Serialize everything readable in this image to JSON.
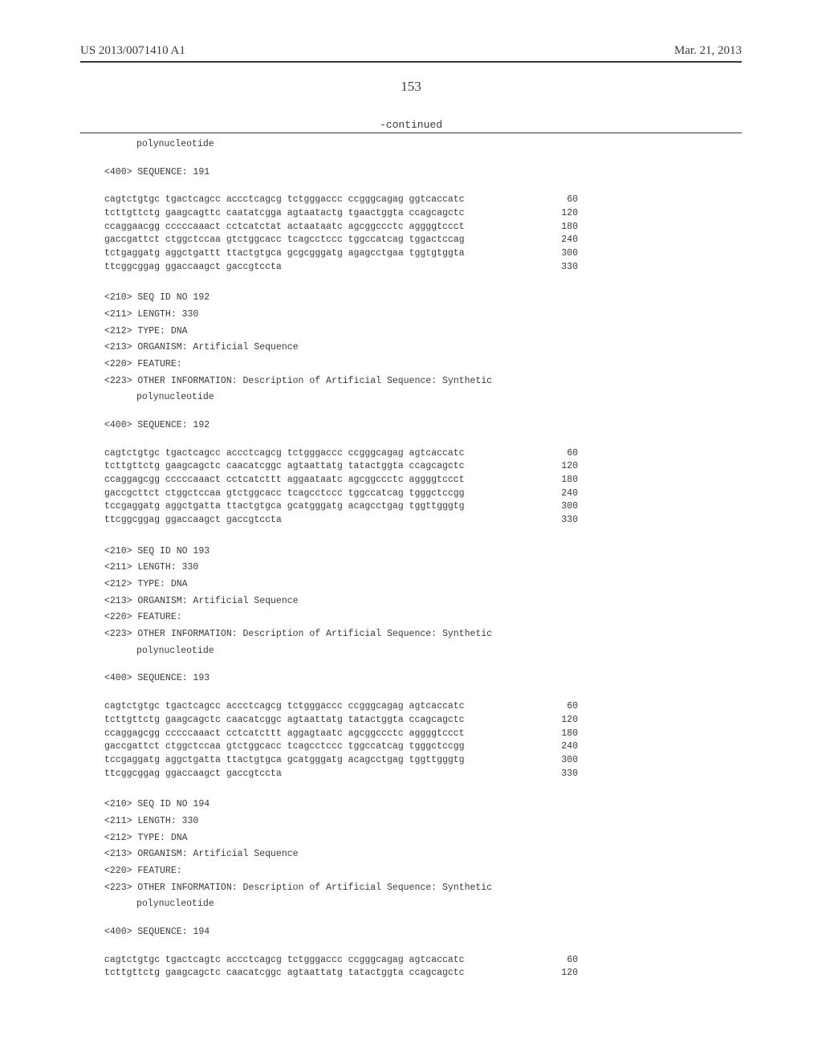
{
  "header": {
    "pub_number": "US 2013/0071410 A1",
    "date": "Mar. 21, 2013",
    "page_number": "153"
  },
  "continued_label": "-continued",
  "sequences": [
    {
      "meta_continuation": [
        "polynucleotide"
      ],
      "seq_label": "<400> SEQUENCE: 191",
      "lines": [
        {
          "text": "cagtctgtgc tgactcagcc accctcagcg tctgggaccc ccgggcagag ggtcaccatc",
          "num": "60"
        },
        {
          "text": "tcttgttctg gaagcagttc caatatcgga agtaatactg tgaactggta ccagcagctc",
          "num": "120"
        },
        {
          "text": "ccaggaacgg cccccaaact cctcatctat actaataatc agcggccctc aggggtccct",
          "num": "180"
        },
        {
          "text": "gaccgattct ctggctccaa gtctggcacc tcagcctccc tggccatcag tggactccag",
          "num": "240"
        },
        {
          "text": "tctgaggatg aggctgattt ttactgtgca gcgcgggatg agagcctgaa tggtgtggta",
          "num": "300"
        },
        {
          "text": "ttcggcggag ggaccaagct gaccgtccta",
          "num": "330"
        }
      ]
    },
    {
      "meta": [
        "<210> SEQ ID NO 192",
        "<211> LENGTH: 330",
        "<212> TYPE: DNA",
        "<213> ORGANISM: Artificial Sequence",
        "<220> FEATURE:",
        "<223> OTHER INFORMATION: Description of Artificial Sequence: Synthetic"
      ],
      "meta_indent": [
        "polynucleotide"
      ],
      "seq_label": "<400> SEQUENCE: 192",
      "lines": [
        {
          "text": "cagtctgtgc tgactcagcc accctcagcg tctgggaccc ccgggcagag agtcaccatc",
          "num": "60"
        },
        {
          "text": "tcttgttctg gaagcagctc caacatcggc agtaattatg tatactggta ccagcagctc",
          "num": "120"
        },
        {
          "text": "ccaggagcgg cccccaaact cctcatcttt aggaataatc agcggccctc aggggtccct",
          "num": "180"
        },
        {
          "text": "gaccgcttct ctggctccaa gtctggcacc tcagcctccc tggccatcag tgggctccgg",
          "num": "240"
        },
        {
          "text": "tccgaggatg aggctgatta ttactgtgca gcatgggatg acagcctgag tggttgggtg",
          "num": "300"
        },
        {
          "text": "ttcggcggag ggaccaagct gaccgtccta",
          "num": "330"
        }
      ]
    },
    {
      "meta": [
        "<210> SEQ ID NO 193",
        "<211> LENGTH: 330",
        "<212> TYPE: DNA",
        "<213> ORGANISM: Artificial Sequence",
        "<220> FEATURE:",
        "<223> OTHER INFORMATION: Description of Artificial Sequence: Synthetic"
      ],
      "meta_indent": [
        "polynucleotide"
      ],
      "seq_label": "<400> SEQUENCE: 193",
      "lines": [
        {
          "text": "cagtctgtgc tgactcagcc accctcagcg tctgggaccc ccgggcagag agtcaccatc",
          "num": "60"
        },
        {
          "text": "tcttgttctg gaagcagctc caacatcggc agtaattatg tatactggta ccagcagctc",
          "num": "120"
        },
        {
          "text": "ccaggagcgg cccccaaact cctcatcttt aggagtaatc agcggccctc aggggtccct",
          "num": "180"
        },
        {
          "text": "gaccgattct ctggctccaa gtctggcacc tcagcctccc tggccatcag tgggctccgg",
          "num": "240"
        },
        {
          "text": "tccgaggatg aggctgatta ttactgtgca gcatgggatg acagcctgag tggttgggtg",
          "num": "300"
        },
        {
          "text": "ttcggcggag ggaccaagct gaccgtccta",
          "num": "330"
        }
      ]
    },
    {
      "meta": [
        "<210> SEQ ID NO 194",
        "<211> LENGTH: 330",
        "<212> TYPE: DNA",
        "<213> ORGANISM: Artificial Sequence",
        "<220> FEATURE:",
        "<223> OTHER INFORMATION: Description of Artificial Sequence: Synthetic"
      ],
      "meta_indent": [
        "polynucleotide"
      ],
      "seq_label": "<400> SEQUENCE: 194",
      "lines": [
        {
          "text": "cagtctgtgc tgactcagtc accctcagcg tctgggaccc ccgggcagag agtcaccatc",
          "num": "60"
        },
        {
          "text": "tcttgttctg gaagcagctc caacatcggc agtaattatg tatactggta ccagcagctc",
          "num": "120"
        }
      ]
    }
  ]
}
